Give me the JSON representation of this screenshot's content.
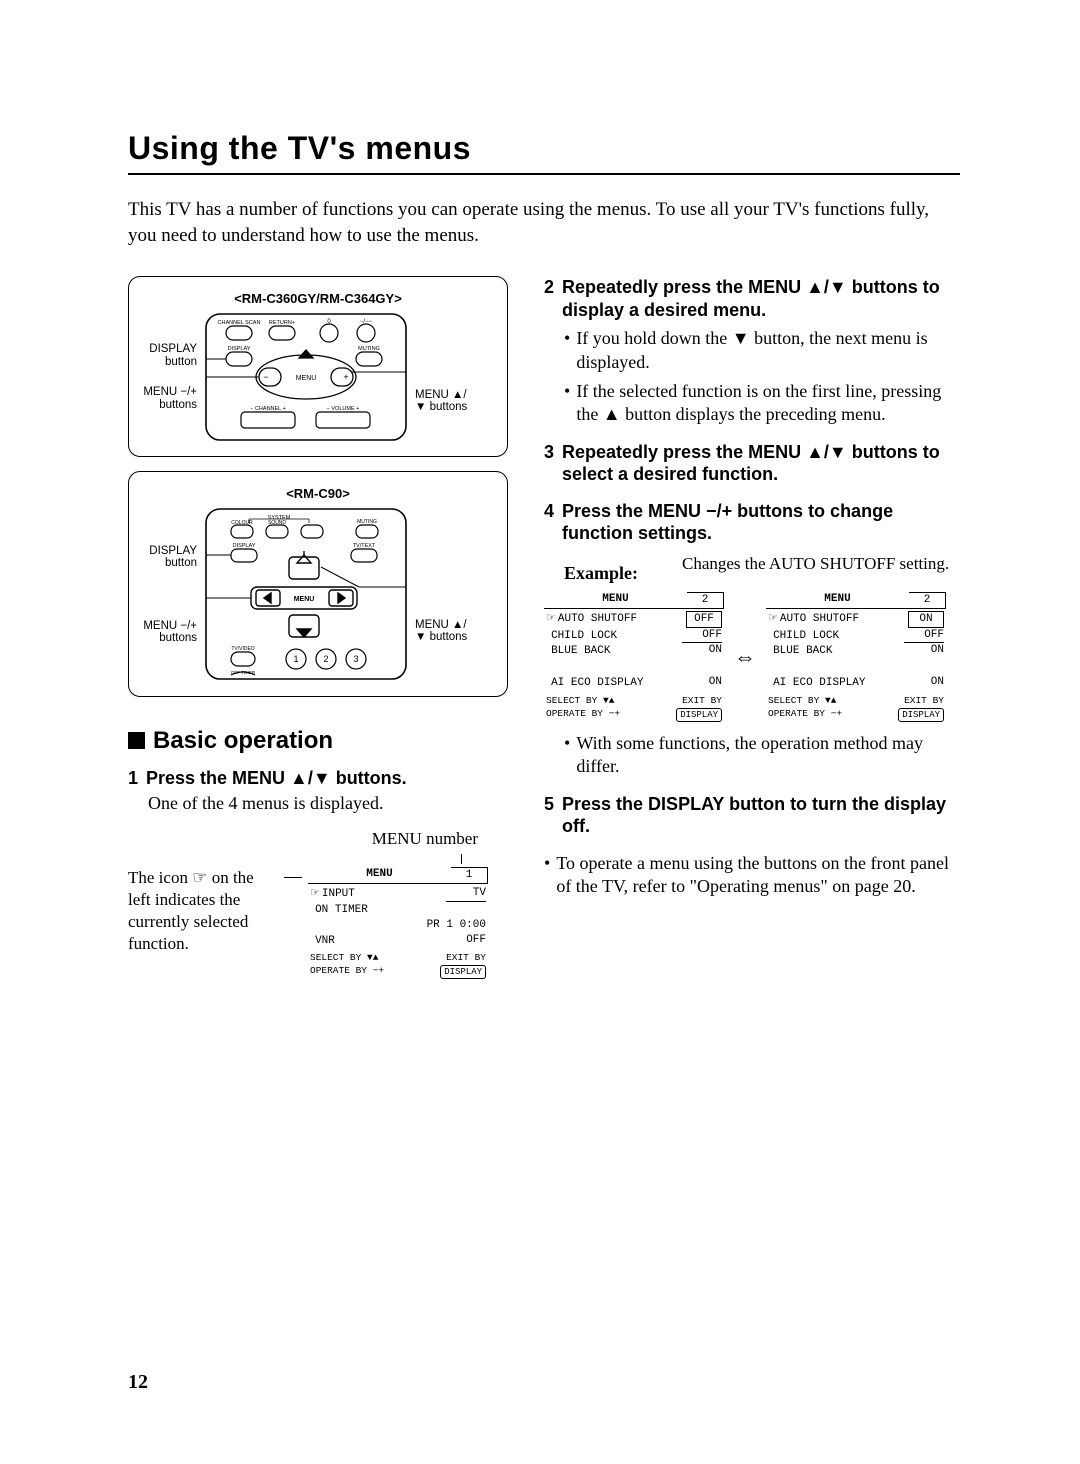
{
  "title": "Using the TV's menus",
  "intro": "This TV has a number of functions you can operate using the menus. To use all your TV's functions fully, you need to understand how to use the menus.",
  "remotes": {
    "a": {
      "title": "<RM-C360GY/RM-C364GY>",
      "left_labels": [
        "DISPLAY button",
        "MENU −/+ buttons"
      ],
      "right_labels": [
        "MENU ▲/▼ buttons"
      ],
      "tiny": {
        "channel_scan": "CHANNEL SCAN",
        "return": "RETURN+",
        "zero": "0",
        "minplus": "−/−−",
        "display": "DISPLAY",
        "muting": "MUTING",
        "menu": "MENU",
        "channel": "− CHANNEL +",
        "volume": "− VOLUME +"
      }
    },
    "b": {
      "title": "<RM-C90>",
      "left_labels": [
        "DISPLAY button",
        "MENU −/+ buttons"
      ],
      "right_labels": [
        "MENU ▲/▼ buttons"
      ],
      "tiny": {
        "system": "SYSTEM",
        "colour": "COLOUR",
        "sound": "SOUND",
        "muting": "MUTING",
        "display": "DISPLAY",
        "tvtext": "TV/TEXT",
        "menu": "MENU",
        "tvvideo": "TV/VIDEO",
        "offtimer": "OFF TIMER",
        "n1": "1",
        "n2": "2",
        "n3": "3"
      }
    }
  },
  "section": "Basic operation",
  "steps": {
    "s1": {
      "num": "1",
      "head": "Press the MENU ▲/▼ buttons.",
      "body": "One of the 4 menus is displayed."
    },
    "s2": {
      "num": "2",
      "head": "Repeatedly press the MENU ▲/▼ buttons to display a desired menu.",
      "bullets": [
        "If you hold down the ▼ button, the next menu is displayed.",
        "If the selected function is on the first line, pressing the ▲ button displays the preceding menu."
      ]
    },
    "s3": {
      "num": "3",
      "head": "Repeatedly press the MENU ▲/▼ buttons to select a desired function."
    },
    "s4": {
      "num": "4",
      "head": "Press the MENU −/+ buttons to change function settings.",
      "example_label": "Example:",
      "changes_note": "Changes the AUTO SHUTOFF setting.",
      "after_note": "With some functions, the operation method may differ."
    },
    "s5": {
      "num": "5",
      "head": "Press the DISPLAY button to turn the display off."
    }
  },
  "front_panel_note": "To operate a menu using the buttons on the front panel of the TV, refer to \"Operating menus\" on page 20.",
  "menu_number_label": "MENU number",
  "icon_note": "The icon ☞ on the left indicates the currently selected function.",
  "osd1": {
    "menu": "MENU",
    "num": "1",
    "rows": [
      {
        "hand": "☞",
        "label": "INPUT",
        "val": "TV",
        "uline": true
      },
      {
        "hand": "",
        "label": "ON TIMER",
        "val": ""
      },
      {
        "hand": "",
        "label": "",
        "val": "PR 1  0:00",
        "right": true
      },
      {
        "hand": "",
        "label": "VNR",
        "val": "OFF"
      }
    ],
    "sel": "SELECT  BY ▼▲",
    "op": "OPERATE BY −+",
    "exit": "EXIT BY",
    "disp": "DISPLAY"
  },
  "osd2a": {
    "menu": "MENU",
    "num": "2",
    "rows": [
      {
        "hand": "☞",
        "label": "AUTO SHUTOFF",
        "val": "OFF",
        "boxed": true
      },
      {
        "hand": "",
        "label": "CHILD LOCK",
        "val": "OFF",
        "uline": true
      },
      {
        "hand": "",
        "label": "BLUE BACK",
        "val": "ON"
      },
      {
        "hand": "",
        "label": "",
        "val": ""
      },
      {
        "hand": "",
        "label": "AI ECO DISPLAY",
        "val": "ON"
      }
    ],
    "sel": "SELECT  BY ▼▲",
    "op": "OPERATE BY −+",
    "exit": "EXIT BY",
    "disp": "DISPLAY"
  },
  "osd2b": {
    "menu": "MENU",
    "num": "2",
    "rows": [
      {
        "hand": "☞",
        "label": "AUTO SHUTOFF",
        "val": "ON",
        "boxed": true
      },
      {
        "hand": "",
        "label": "CHILD LOCK",
        "val": "OFF",
        "uline": true
      },
      {
        "hand": "",
        "label": "BLUE BACK",
        "val": "ON"
      },
      {
        "hand": "",
        "label": "",
        "val": ""
      },
      {
        "hand": "",
        "label": "AI ECO DISPLAY",
        "val": "ON"
      }
    ],
    "sel": "SELECT  BY ▼▲",
    "op": "OPERATE BY −+",
    "exit": "EXIT BY",
    "disp": "DISPLAY"
  },
  "page_number": "12",
  "arrow": "⇔"
}
